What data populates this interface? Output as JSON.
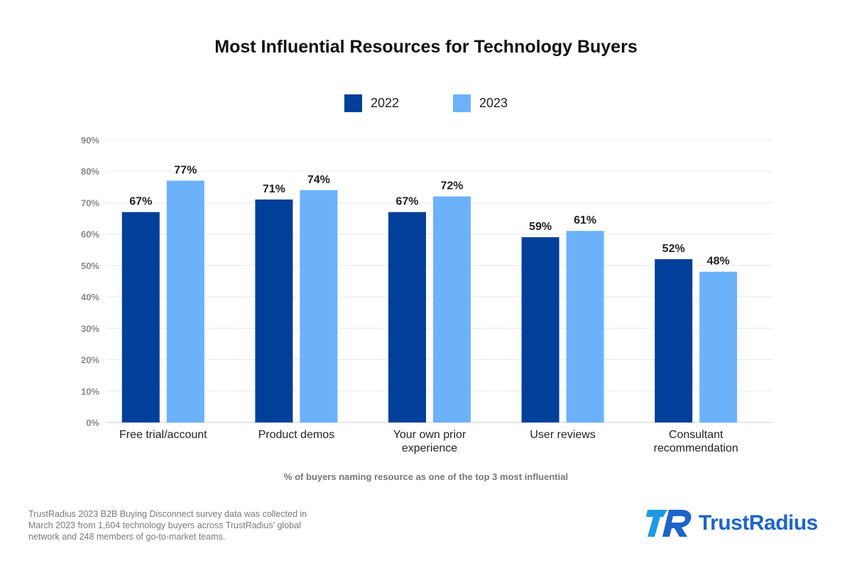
{
  "colors": {
    "y2022": "#003f9a",
    "y2023": "#6cb2fb",
    "grid": "#e8e8e8",
    "brand": "#1e64c8"
  },
  "chart_data": {
    "type": "bar",
    "title": "Most Influential Resources for Technology Buyers",
    "categories": [
      [
        "Free trial/account"
      ],
      [
        "Product demos"
      ],
      [
        "Your own prior",
        "experience"
      ],
      [
        "User reviews"
      ],
      [
        "Consultant",
        "recommendation"
      ]
    ],
    "series": [
      {
        "name": "2022",
        "values": [
          67,
          71,
          67,
          59,
          52
        ],
        "labels": [
          "67%",
          "71%",
          "67%",
          "59%",
          "52%"
        ]
      },
      {
        "name": "2023",
        "values": [
          77,
          74,
          72,
          61,
          48
        ],
        "labels": [
          "77%",
          "74%",
          "72%",
          "61%",
          "48%"
        ]
      }
    ],
    "ylim": [
      0,
      90
    ],
    "yticks": [
      "0%",
      "10%",
      "20%",
      "30%",
      "40%",
      "50%",
      "60%",
      "70%",
      "80%",
      "90%"
    ],
    "grid": true,
    "legend_position": "top-center",
    "xlabel": "% of buyers naming resource as one of the top 3 most influential"
  },
  "footnote": "TrustRadius 2023 B2B Buying Disconnect survey data was collected in March 2023 from 1,604 technology buyers across TrustRadius' global network and 248 members of go-to-market teams.",
  "logo_text": "TrustRadius"
}
